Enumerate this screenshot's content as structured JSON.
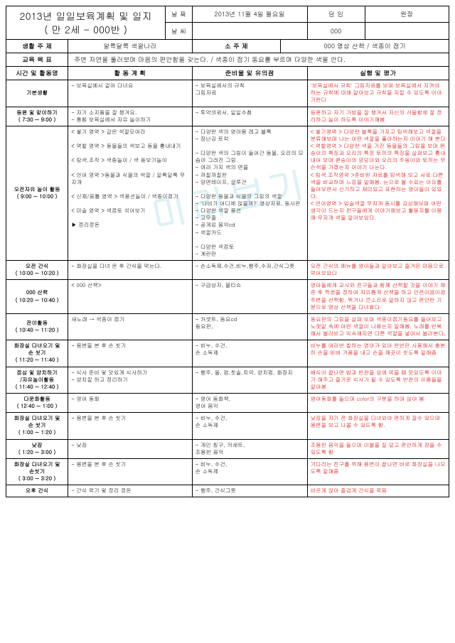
{
  "watermark": "미리보기",
  "title_line1": "2013년   일일보육계획 및 일지",
  "title_line2": "(   만 2세 - 000반  )",
  "header": {
    "date_label": "날 짜",
    "date_value": "2013년 11월 4일 월요일",
    "charge_label": "담  임",
    "director_label": "원장",
    "weather_label": "날 씨",
    "weather_value": "",
    "charge_value": "000",
    "director_value": ""
  },
  "theme": {
    "life_label": "생활 주 제",
    "life_value": "알록달록 색깔나라",
    "sub_label": "소 주 제",
    "sub_value": "000 명상 산책 / 색종이 접기"
  },
  "goal": {
    "label": "교육 목 표",
    "value": "주변 자연을 둘러보며 마음의 편안함을 갖는다. / 색종이 접기 동요를 부르며 다양한 색을 안다."
  },
  "cols": {
    "time": "시간 및 활동명",
    "plan": "활  동 계  획",
    "prep": "준비물 및 유의점",
    "eval": "실행 및 평가"
  },
  "rows": [
    {
      "time": "기본생활",
      "plan": "- 보육실에서 걸어 다녀요",
      "prep": "- 보육실에서의 규칙\n  그림자료",
      "eval": "'보육실에서 규칙' 그림자료를 보며 보육실에서 지켜야 하는 규칙에 대해 알아보고 규칙을 지킬 수 있도록 이야기한다"
    },
    {
      "time": "등원 및 맞이하기\n( 7:30 ~ 9:00 )",
      "plan": "- 자기 소지품을 잘 챙겨요.\n- 통합 보육실에서 자유 놀이하기",
      "prep": "- 투약의뢰서, 일일수첩",
      "eval": "등원하고 자기 가방을 잘 챙겨서 자신의 사물함에 잘 정리하고 놀이 하도록 이야기해봄"
    },
    {
      "time": "오전자유 놀이 활동\n( 9:00 ~ 10:00 )",
      "plan": "< 쌓기 영역 > 같은 색깔모여라\n\n< 역할 영역 > 동물들의 색보고 동물 흉내내기\n\n< 탐색.조작 > 색종놀이 / 색 돋보기놀이\n\n< 언어 영역 >동물과 식물의 색깔 / 알록달록 무지개\n\n< 신체/음률 영역 > 색풍선놀이 / 색종이접기\n\n< 미술 영역 > 색점토 섞어보기\n\n▶ 정리정돈",
      "prep": "- 다양한 색의 영아용 레고 블록\n- 장난감 트럭\n\n- 다양한 색의 그림이 들어간 동물, 오리의 모습이 그려진 그림\n- 여러 가지 색의 면을\n- 까칠까칠한\n- 양면테이프, 글루건\n\n- 다양한 동물과 식물의 그림의 색깔\n- '나비가 어디에 앉을까?' 영상자료, 동시판\n- 다양한 색깔 풍선\n- 고무줄\n- 공게임 음악cd\n- 색깔카드\n\n- 다양한 색점토\n- 계란판",
      "eval": "< 쌓기영역 > 다양한 블록을 가지고 탐색해보고 색깔을 분류해보며 나는 어떤 색깔을 좋아하는지 이야기 해 본다\n< 역할영역 > 다양한 색을 가진 동물들의 그림을 보며 원숭이의 특징과 오리의 특징 토끼의 특징을 살펴보고 흉내내어 보며 원숭이의 엉덩이와 오리의 주둥이와 토끼는 무슨색을 가졌는지 이야기 나눈다.\n< 탐색.조작영역 >준비된 자료를 탐색해 보고 서로 다른 색을 비교하며 느낌을 말해봄. 눈으로 볼 수있는 이유를 들어보면서 신기하고 재미있고 표현하는 영아들이 있었다.\n< 언어영역 > 입술색깔 무지개 동시를 감상해보며 어떤 생각이 드는지 친구들에게 이야기해보고 활동지를 이용해 무지개 색을 알아보았다."
    },
    {
      "time": "오전 간식\n( 10:00 ~ 10:20 )",
      "plan": "- 화장실을 다녀 온 후 간식을 먹는다.",
      "prep": "- 손소독제,수건,비누,행주,수저,간식그릇",
      "eval": "오전 간식의 메뉴를 영아들과 알아보고   즐거운 마음으로 먹어보았다"
    },
    {
      "time": "000 산책\n( 10:20 ~ 10:40 )",
      "plan": "< 000 산책>",
      "prep": "- 구급상자, 물티슈",
      "eval": "영아들에게 교사와 친구들과 함께 산책할 것을 이야기 해 준 후 짝꿍을 정하여 자유롭게 산책을 하고 안전이끔이끔 주변을 산책함. 뛰거나 큰소리로 말하지 않고 편안한 기분으로 명상 산책을 다녀왔다"
    },
    {
      "time": "전이활동\n( 10:40 ~ 11:20 )",
      "plan": "새노래  → 색종이 접기",
      "prep": "- 카셋트, 동요cd\n  동요판,",
      "eval": "동요판의 그림을 살펴 보며 색종이접기동요를 들어보고 노랫말 속에 어떤 색깔이 나왔는지 말해봄. 노래를 반복해서 불러보고 익숙해지면 다른 색깔을 넣어서 불러본다."
    },
    {
      "time": "화장실 다녀오기 및\n손 씻기\n( 11:20 ~ 11:40 )",
      "plan": "- 용변을 본 후 손 씻기",
      "prep": "- 비누, 수건,\n  손 소독제",
      "eval": "비누를 여러번 칠하는 영아가 있어 한번만 사용해서 충분히 손을 비벼 거품을 내고 손을 깨끗이 씻도록 말해줌"
    },
    {
      "time": "점심 및 양치하기\n/자유놀이활동\n( 11:40 ~ 12:40 )",
      "plan": "- 식사 준비 및  맛있게 식사하기\n- 양치질 하고 정리하기",
      "prep": "- 행주, 물, 컵,칫솔,치약, 양치컵, 화장지",
      "eval": "배식이 끝나면 밥과 반찬을 앞에 먹을 때 맛있도록 이야기 해주고 즐거운 식사가 될 수 있도록 반찬의 이름들을 알아봄"
    },
    {
      "time": "다문화활동\n( 12:40 ~ 1:00 )",
      "plan": "- 영어 동화",
      "prep": "- 영어 동화책,\n  영어 음악",
      "eval": "영어동화를 들으며 color의 구분을 하며 앉아 봄"
    },
    {
      "time": "화장실 다녀오기 및\n손 씻기\n( 1:00 ~ 1:20 )",
      "plan": "- 용변을 본 후 손 씻기",
      "prep": "- 비누, 수건,\n  손 소독제",
      "eval": "낮잠을 자기 전 화장실을 다녀와야 편하게 잘수 있으며 용변을 보고 나올 수 있도록 함."
    },
    {
      "time": "낮잠\n( 1:20 ~ 3:00 )",
      "plan": "- 낮잠",
      "prep": "- 개인 침구, 카세트,\n  조용한 음악",
      "eval": "조용한 음악을 들으며 이불을 잘 덮고 편안하게 잠들 수 있도록 함"
    },
    {
      "time": "화장실 다녀오기 및\n손씻기\n( 3:00 ~ 3:20 )",
      "plan": "- 용변을 본 후 손 씻기",
      "prep": "- 비누, 수건,\n  손 소독제",
      "eval": "기다리는 친구를 위해 용변이 끝나면 바로 화장실을 나오도록 말해줌"
    },
    {
      "time": "오후 간식",
      "plan": "- 간식 먹기 및 정리 정돈",
      "prep": "- 행주, 간식그릇",
      "eval": "바르게 앉아 줄겁게 간식을 먹음"
    }
  ]
}
